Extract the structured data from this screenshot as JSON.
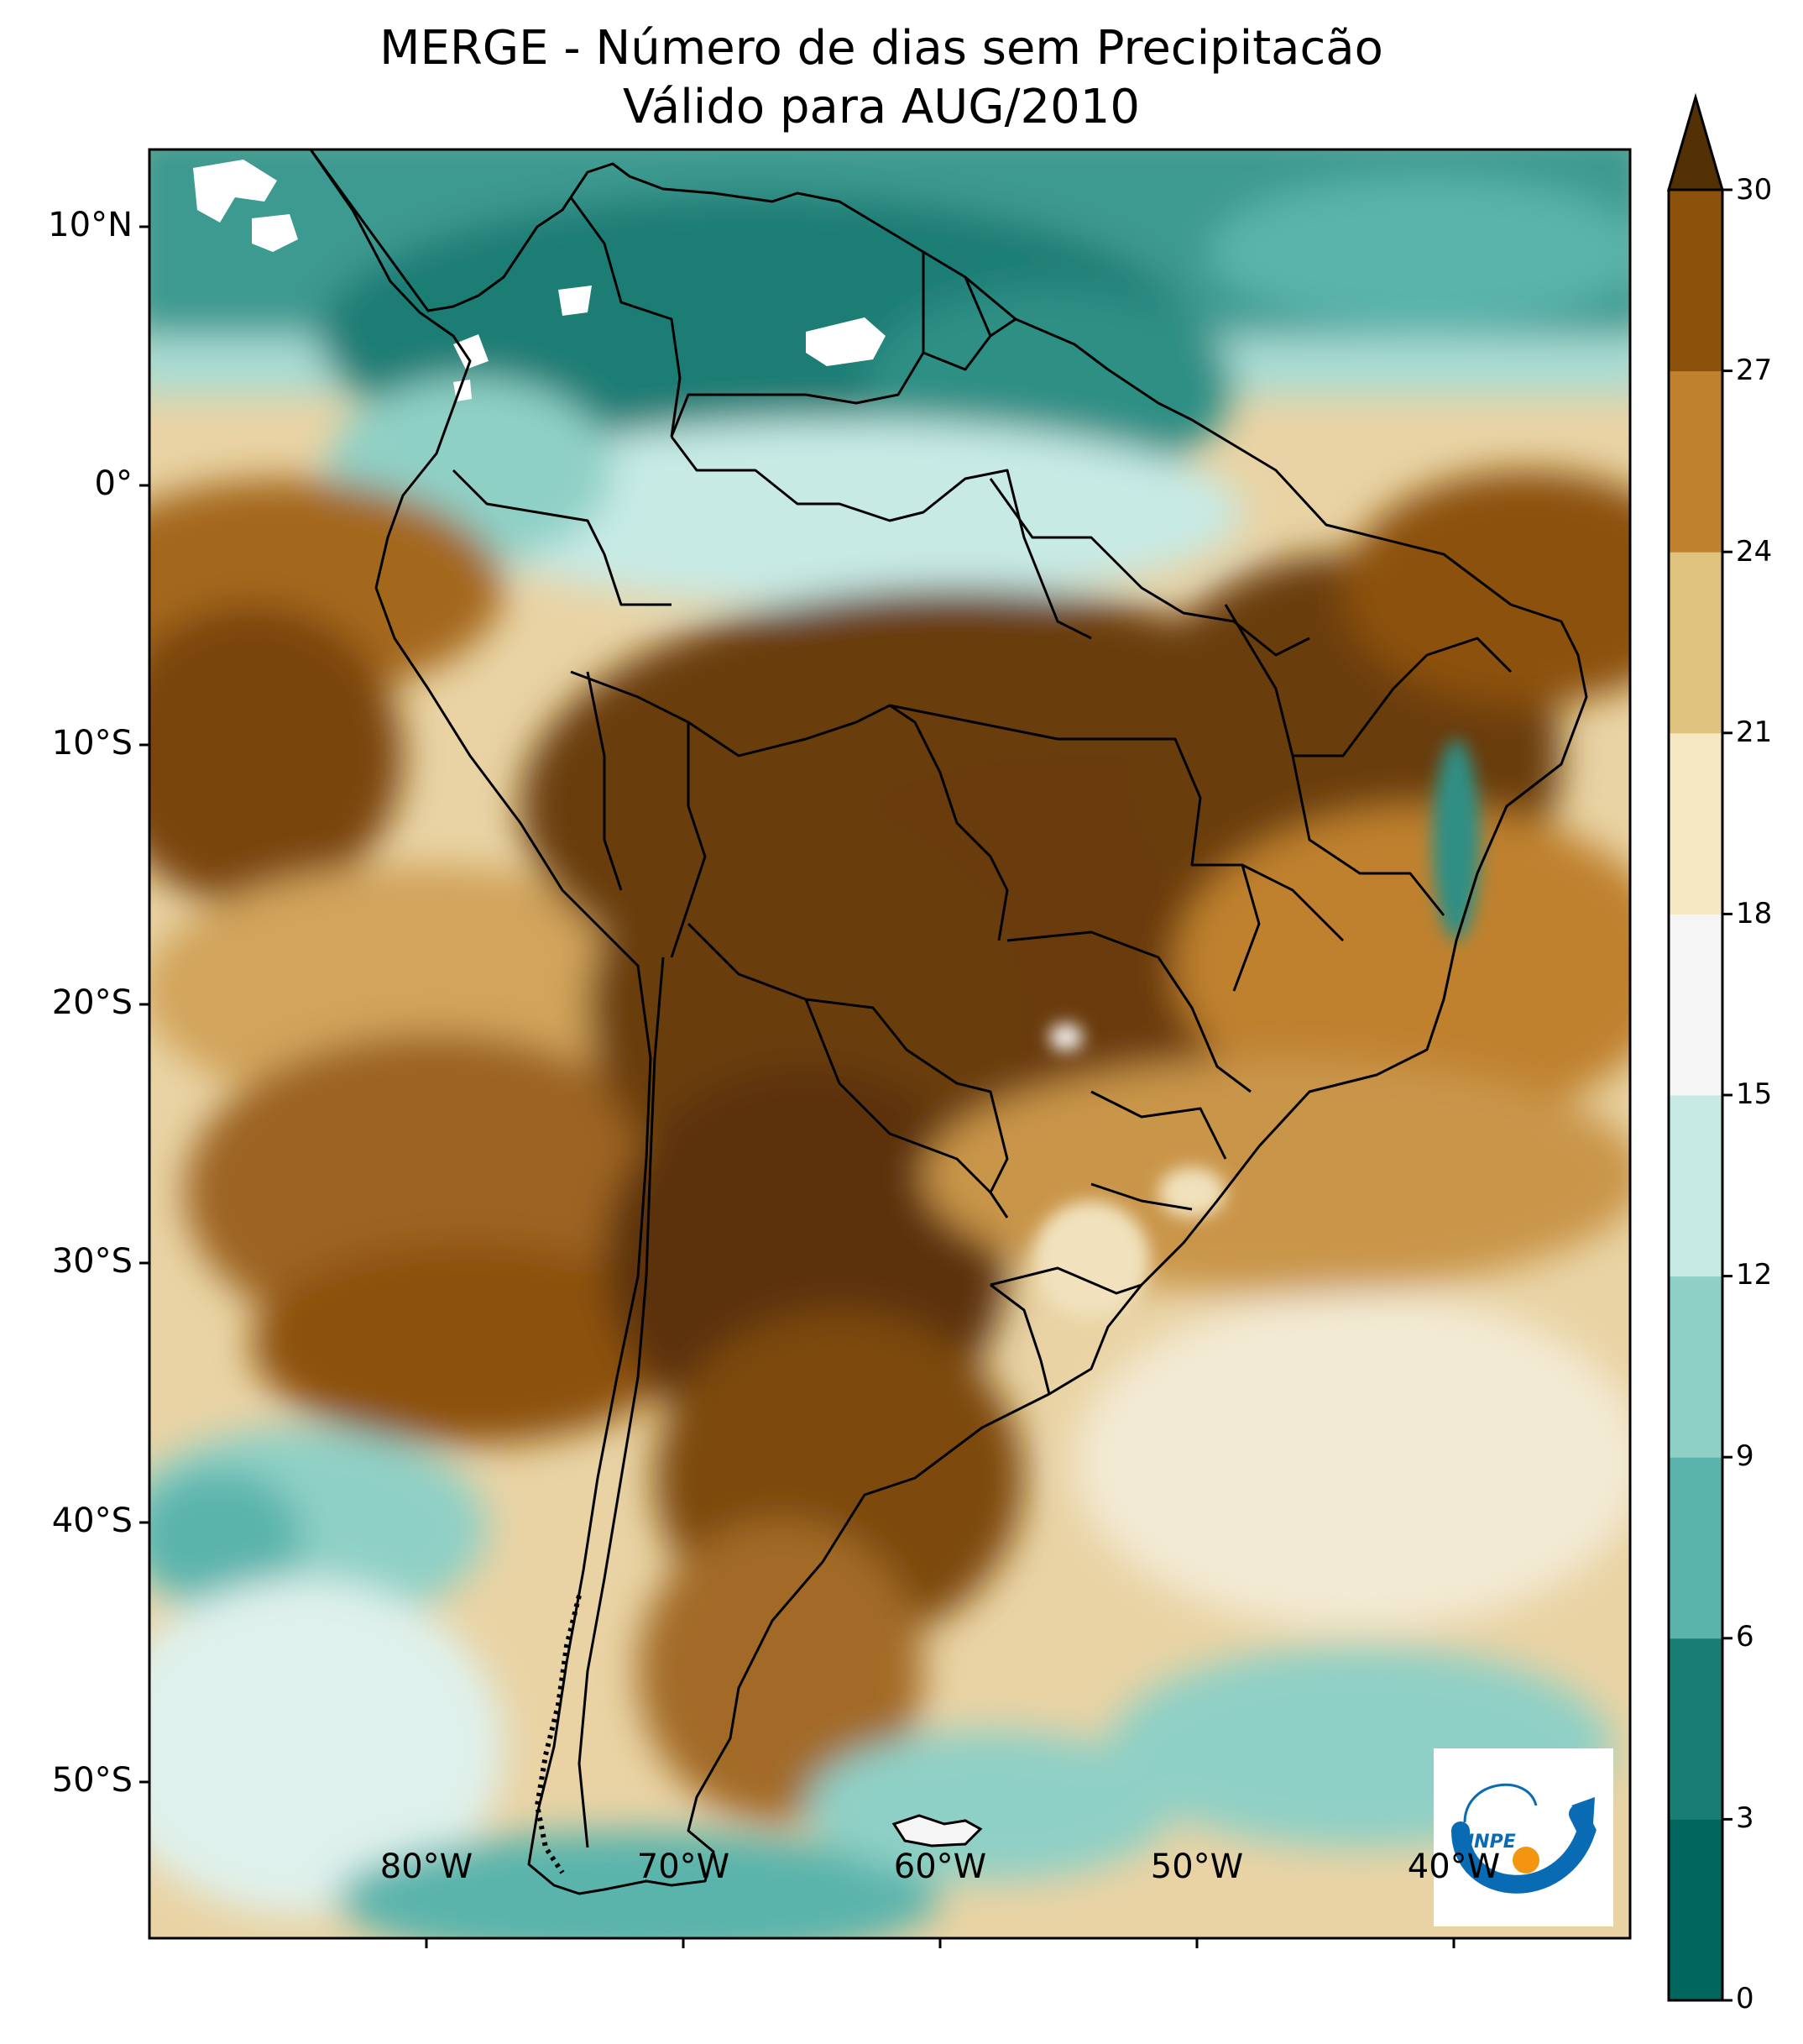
{
  "title": {
    "line1": "MERGE - Número de dias sem Precipitacão",
    "line2": "Válido para AUG/2010"
  },
  "axes": {
    "lat_ticks": [
      "10°N",
      "0°",
      "10°S",
      "20°S",
      "30°S",
      "40°S",
      "50°S"
    ],
    "lon_ticks": [
      "80°W",
      "70°W",
      "60°W",
      "50°W",
      "40°W"
    ]
  },
  "colorbar": {
    "ticks": [
      "30",
      "27",
      "24",
      "21",
      "18",
      "15",
      "12",
      "9",
      "6",
      "3",
      "0"
    ],
    "colors": [
      "#01665e",
      "#1a7d74",
      "#5ab4ac",
      "#8fd0c6",
      "#c7eae5",
      "#f5f5f5",
      "#f6e8c3",
      "#dfc27d",
      "#bf812d",
      "#8c510a",
      "#543005"
    ],
    "extend": "max"
  },
  "map_colors": {
    "ocean_dry": "#c58f45",
    "very_dry": "#6b3c0d",
    "moderate": "#f1e2bd",
    "wet": "#8fd0c6",
    "very_wet": "#1a7d74"
  },
  "logo": {
    "text": "INPE",
    "blue": "#0a6bb5",
    "orange": "#f29611"
  }
}
